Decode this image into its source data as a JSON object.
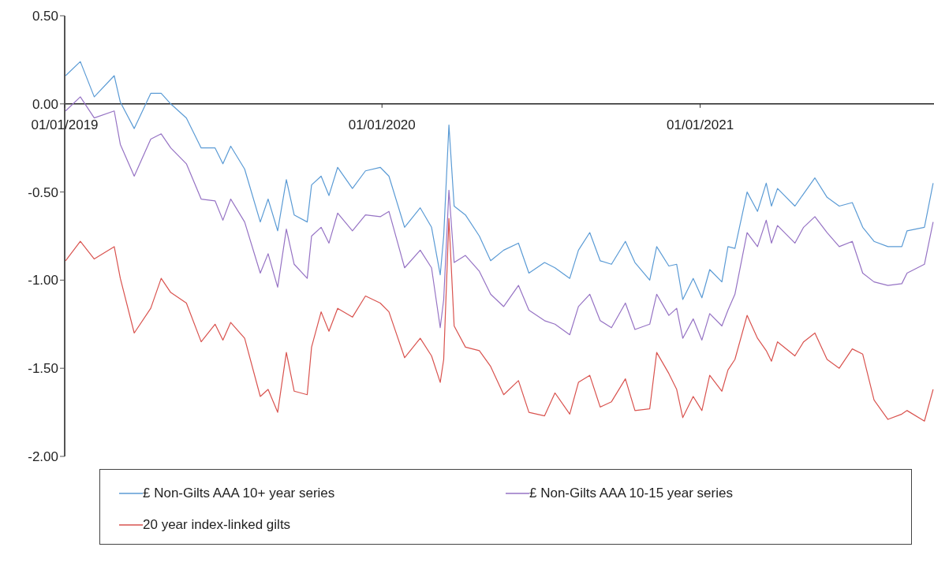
{
  "chart_data": {
    "type": "line",
    "x": [
      "2019-01-02",
      "2019-01-19",
      "2019-02-04",
      "2019-02-27",
      "2019-03-06",
      "2019-03-22",
      "2019-04-10",
      "2019-04-22",
      "2019-05-03",
      "2019-05-21",
      "2019-06-07",
      "2019-06-23",
      "2019-07-02",
      "2019-07-11",
      "2019-07-27",
      "2019-08-14",
      "2019-08-23",
      "2019-09-03",
      "2019-09-13",
      "2019-09-22",
      "2019-10-07",
      "2019-10-12",
      "2019-10-23",
      "2019-11-01",
      "2019-11-11",
      "2019-11-28",
      "2019-12-13",
      "2019-12-30",
      "2020-01-09",
      "2020-01-27",
      "2020-02-14",
      "2020-02-27",
      "2020-03-08",
      "2020-03-12",
      "2020-03-18",
      "2020-03-24",
      "2020-04-06",
      "2020-04-22",
      "2020-05-05",
      "2020-05-20",
      "2020-06-06",
      "2020-06-18",
      "2020-07-06",
      "2020-07-18",
      "2020-08-04",
      "2020-08-14",
      "2020-08-27",
      "2020-09-08",
      "2020-09-21",
      "2020-10-07",
      "2020-10-18",
      "2020-11-04",
      "2020-11-12",
      "2020-11-26",
      "2020-12-05",
      "2020-12-12",
      "2020-12-24",
      "2021-01-03",
      "2021-01-12",
      "2021-01-26",
      "2021-02-02",
      "2021-02-10",
      "2021-02-24",
      "2021-03-08",
      "2021-03-18",
      "2021-03-24",
      "2021-03-31",
      "2021-04-20",
      "2021-04-30",
      "2021-05-13",
      "2021-05-27",
      "2021-06-10",
      "2021-06-25",
      "2021-07-07",
      "2021-07-20",
      "2021-08-05",
      "2021-08-21",
      "2021-08-27",
      "2021-09-16",
      "2021-09-26"
    ],
    "series": [
      {
        "name": "£ Non-Gilts AAA 10+ year series",
        "color": "#5b9bd5",
        "values": [
          0.16,
          0.24,
          0.04,
          0.16,
          0.01,
          -0.14,
          0.06,
          0.06,
          0.0,
          -0.08,
          -0.25,
          -0.25,
          -0.34,
          -0.24,
          -0.37,
          -0.67,
          -0.54,
          -0.72,
          -0.43,
          -0.63,
          -0.67,
          -0.46,
          -0.41,
          -0.52,
          -0.36,
          -0.48,
          -0.38,
          -0.36,
          -0.41,
          -0.7,
          -0.59,
          -0.7,
          -0.97,
          -0.75,
          -0.12,
          -0.58,
          -0.63,
          -0.75,
          -0.89,
          -0.83,
          -0.79,
          -0.96,
          -0.9,
          -0.93,
          -0.99,
          -0.83,
          -0.73,
          -0.89,
          -0.91,
          -0.78,
          -0.9,
          -1.0,
          -0.81,
          -0.92,
          -0.91,
          -1.11,
          -0.99,
          -1.1,
          -0.94,
          -1.01,
          -0.81,
          -0.82,
          -0.5,
          -0.61,
          -0.45,
          -0.58,
          -0.48,
          -0.58,
          -0.51,
          -0.42,
          -0.53,
          -0.58,
          -0.56,
          -0.7,
          -0.78,
          -0.81,
          -0.81,
          -0.72,
          -0.7,
          -0.45
        ]
      },
      {
        "name": "£ Non-Gilts AAA 10-15 year series",
        "color": "#9673c4",
        "values": [
          -0.04,
          0.04,
          -0.08,
          -0.04,
          -0.23,
          -0.41,
          -0.2,
          -0.17,
          -0.25,
          -0.34,
          -0.54,
          -0.55,
          -0.66,
          -0.54,
          -0.67,
          -0.96,
          -0.85,
          -1.04,
          -0.71,
          -0.91,
          -0.99,
          -0.75,
          -0.7,
          -0.79,
          -0.62,
          -0.72,
          -0.63,
          -0.64,
          -0.61,
          -0.93,
          -0.83,
          -0.93,
          -1.27,
          -1.11,
          -0.49,
          -0.9,
          -0.86,
          -0.95,
          -1.08,
          -1.15,
          -1.03,
          -1.17,
          -1.23,
          -1.25,
          -1.31,
          -1.15,
          -1.08,
          -1.23,
          -1.27,
          -1.13,
          -1.28,
          -1.25,
          -1.08,
          -1.2,
          -1.16,
          -1.33,
          -1.22,
          -1.34,
          -1.19,
          -1.26,
          -1.17,
          -1.08,
          -0.73,
          -0.81,
          -0.66,
          -0.79,
          -0.69,
          -0.79,
          -0.7,
          -0.64,
          -0.73,
          -0.81,
          -0.78,
          -0.96,
          -1.01,
          -1.03,
          -1.02,
          -0.96,
          -0.91,
          -0.67
        ]
      },
      {
        "name": "20 year index-linked gilts",
        "color": "#d9534f",
        "values": [
          -0.89,
          -0.78,
          -0.88,
          -0.81,
          -0.99,
          -1.3,
          -1.16,
          -0.99,
          -1.07,
          -1.13,
          -1.35,
          -1.25,
          -1.34,
          -1.24,
          -1.33,
          -1.66,
          -1.62,
          -1.75,
          -1.41,
          -1.63,
          -1.65,
          -1.38,
          -1.18,
          -1.29,
          -1.16,
          -1.21,
          -1.09,
          -1.13,
          -1.18,
          -1.44,
          -1.33,
          -1.43,
          -1.58,
          -1.45,
          -0.65,
          -1.26,
          -1.38,
          -1.4,
          -1.49,
          -1.65,
          -1.57,
          -1.75,
          -1.77,
          -1.64,
          -1.76,
          -1.58,
          -1.54,
          -1.72,
          -1.69,
          -1.56,
          -1.74,
          -1.73,
          -1.41,
          -1.53,
          -1.62,
          -1.78,
          -1.66,
          -1.74,
          -1.54,
          -1.63,
          -1.51,
          -1.45,
          -1.2,
          -1.33,
          -1.4,
          -1.46,
          -1.35,
          -1.43,
          -1.35,
          -1.3,
          -1.45,
          -1.5,
          -1.39,
          -1.42,
          -1.68,
          -1.79,
          -1.76,
          -1.74,
          -1.8,
          -1.62
        ]
      }
    ],
    "xlim": [
      "2019-01-01",
      "2021-09-27"
    ],
    "xticks": [
      {
        "value": "2019-01-01",
        "label": "01/01/2019"
      },
      {
        "value": "2020-01-01",
        "label": "01/01/2020"
      },
      {
        "value": "2021-01-01",
        "label": "01/01/2021"
      }
    ],
    "ylim": [
      -2,
      0.5
    ],
    "yticks": [
      {
        "value": 0.5,
        "label": "0.50"
      },
      {
        "value": 0,
        "label": "0.00"
      },
      {
        "value": -0.5,
        "label": "-0.50"
      },
      {
        "value": -1,
        "label": "-1.00"
      },
      {
        "value": -1.5,
        "label": "-1.50"
      },
      {
        "value": -2,
        "label": "-2.00"
      }
    ],
    "grid": false,
    "legend": "bottom",
    "marker": "none",
    "line_style": "solid"
  }
}
